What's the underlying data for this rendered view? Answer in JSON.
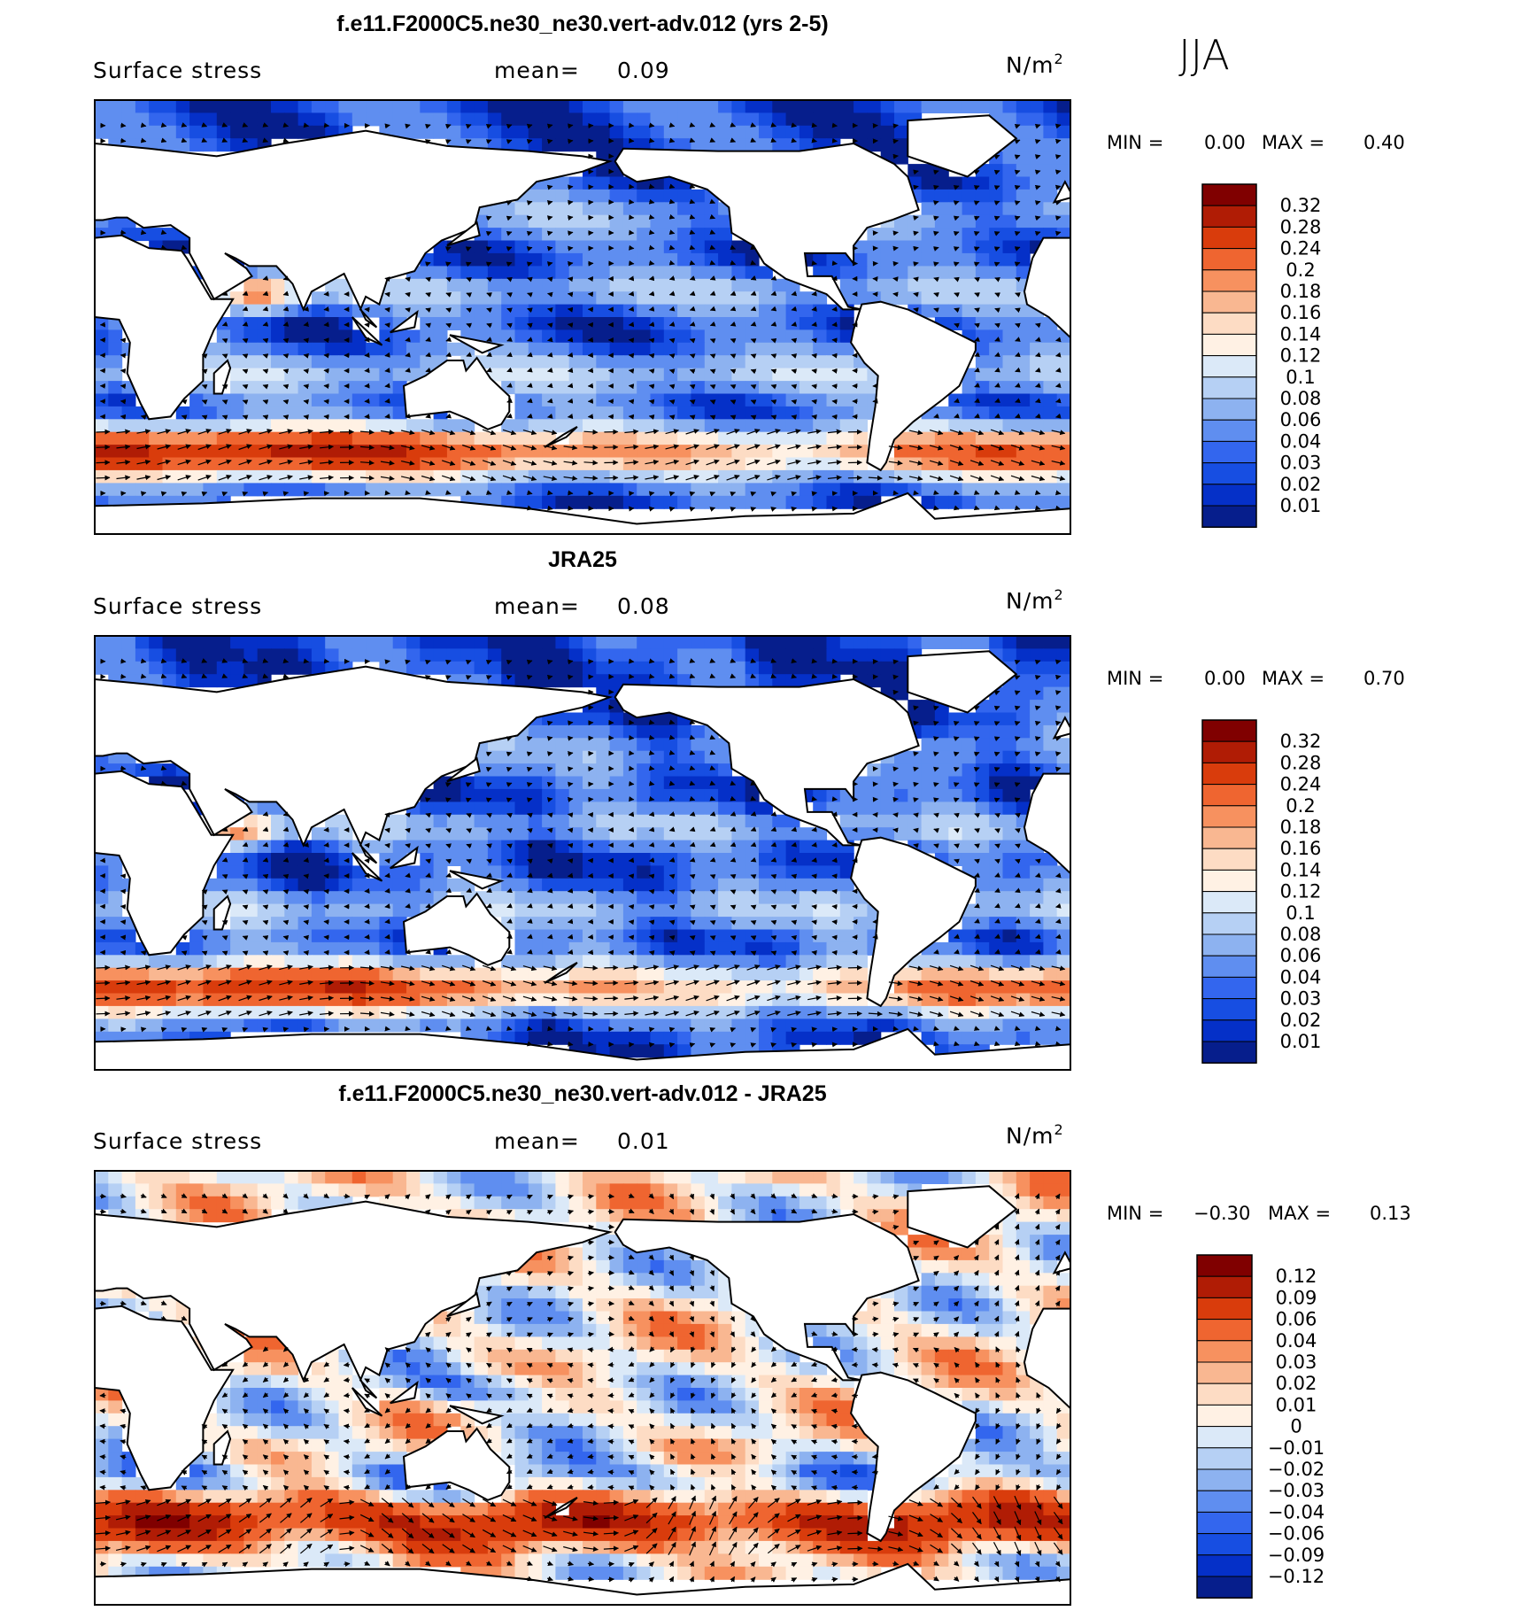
{
  "season": "JJA",
  "chart_data": [
    {
      "type": "heatmap",
      "title": "f.e11.F2000C5.ne30_ne30.vert-adv.012 (yrs 2-5)",
      "variable": "Surface stress",
      "mean_label": "mean=",
      "mean": "0.09",
      "units_base": "N/m",
      "units_exp": "2",
      "min_label": "MIN =",
      "min": "0.00",
      "max_label": "MAX =",
      "max": "0.40",
      "colorbar_levels": [
        "0.32",
        "0.28",
        "0.24",
        "0.2",
        "0.18",
        "0.16",
        "0.14",
        "0.12",
        "0.1",
        "0.08",
        "0.06",
        "0.04",
        "0.03",
        "0.02",
        "0.01"
      ],
      "colorbar_colors": [
        "#800000",
        "#b01c05",
        "#d93c0c",
        "#ef6530",
        "#f7915f",
        "#f9b791",
        "#fddcc4",
        "#fff1e4",
        "#dbe9f8",
        "#b6d0f4",
        "#8db2f0",
        "#5f8ef0",
        "#3366ee",
        "#174ee2",
        "#0530c8",
        "#061e8c"
      ],
      "field_mean": 0.09,
      "projection": "cylindrical equidistant, 0-360E",
      "vectors": "surface stress arrows"
    },
    {
      "type": "heatmap",
      "title": "JRA25",
      "variable": "Surface stress",
      "mean_label": "mean=",
      "mean": "0.08",
      "units_base": "N/m",
      "units_exp": "2",
      "min_label": "MIN =",
      "min": "0.00",
      "max_label": "MAX =",
      "max": "0.70",
      "colorbar_levels": [
        "0.32",
        "0.28",
        "0.24",
        "0.2",
        "0.18",
        "0.16",
        "0.14",
        "0.12",
        "0.1",
        "0.08",
        "0.06",
        "0.04",
        "0.03",
        "0.02",
        "0.01"
      ],
      "colorbar_colors": [
        "#800000",
        "#b01c05",
        "#d93c0c",
        "#ef6530",
        "#f7915f",
        "#f9b791",
        "#fddcc4",
        "#fff1e4",
        "#dbe9f8",
        "#b6d0f4",
        "#8db2f0",
        "#5f8ef0",
        "#3366ee",
        "#174ee2",
        "#0530c8",
        "#061e8c"
      ],
      "field_mean": 0.08,
      "projection": "cylindrical equidistant, 0-360E",
      "vectors": "surface stress arrows"
    },
    {
      "type": "heatmap",
      "title": "f.e11.F2000C5.ne30_ne30.vert-adv.012 - JRA25",
      "variable": "Surface stress",
      "mean_label": "mean=",
      "mean": "0.01",
      "units_base": "N/m",
      "units_exp": "2",
      "min_label": "MIN =",
      "min": "−0.30",
      "max_label": "MAX =",
      "max": "0.13",
      "colorbar_levels": [
        "0.12",
        "0.09",
        "0.06",
        "0.04",
        "0.03",
        "0.02",
        "0.01",
        "0",
        "−0.01",
        "−0.02",
        "−0.03",
        "−0.04",
        "−0.06",
        "−0.09",
        "−0.12"
      ],
      "colorbar_colors": [
        "#800000",
        "#b01c05",
        "#d93c0c",
        "#ef6530",
        "#f7915f",
        "#f9b791",
        "#fddcc4",
        "#fff1e4",
        "#dbe9f8",
        "#b6d0f4",
        "#8db2f0",
        "#5f8ef0",
        "#3366ee",
        "#174ee2",
        "#0530c8",
        "#061e8c"
      ],
      "field_mean": 0.01,
      "projection": "cylindrical equidistant, 0-360E",
      "vectors": "surface stress difference arrows"
    }
  ]
}
